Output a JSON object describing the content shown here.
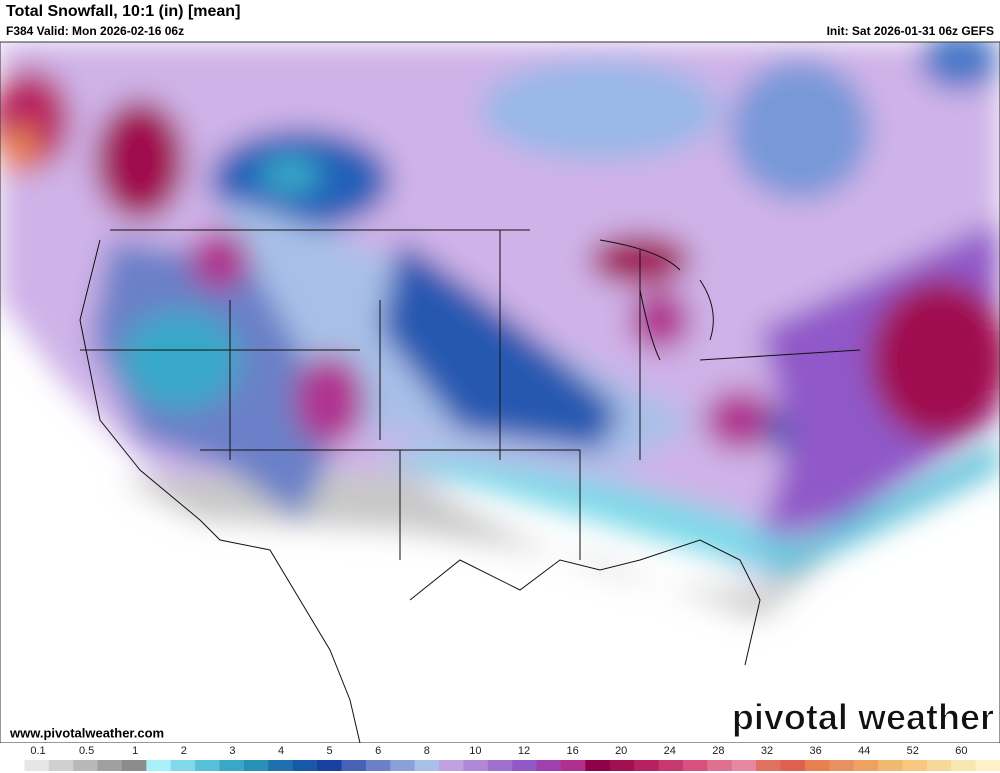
{
  "header": {
    "title": "Total Snowfall, 10:1 (in) [mean]",
    "valid": "F384 Valid: Mon 2026-02-16 06z",
    "init": "Init: Sat 2026-01-31 06z GEFS"
  },
  "footer": {
    "website": "www.pivotalweather.com",
    "logo": "pivotal weather"
  },
  "colorbar": {
    "ticks": [
      0.1,
      0.5,
      1,
      2,
      3,
      4,
      5,
      6,
      8,
      10,
      12,
      16,
      20,
      24,
      28,
      32,
      36,
      44,
      52,
      60
    ],
    "colors": [
      "#ffffff",
      "#e6e6e6",
      "#d0d0d0",
      "#b8b8b8",
      "#a0a0a0",
      "#8c8c8c",
      "#a8f0f8",
      "#80d8e8",
      "#58c0d8",
      "#38a8c8",
      "#2890b8",
      "#2070b0",
      "#1858a8",
      "#1840a0",
      "#4a60b8",
      "#6a80c8",
      "#8aa0d8",
      "#a8c0e8",
      "#c0a0e0",
      "#b088d8",
      "#a070d0",
      "#9058c8",
      "#a040b0",
      "#b03090",
      "#900048",
      "#a01050",
      "#b82060",
      "#c83870",
      "#d85080",
      "#e07090",
      "#e888a0",
      "#e07060",
      "#e06050",
      "#e88050",
      "#e89060",
      "#f0a060",
      "#f0b870",
      "#f8c880",
      "#f8d898",
      "#f8e8b0",
      "#fff0c8"
    ]
  }
}
